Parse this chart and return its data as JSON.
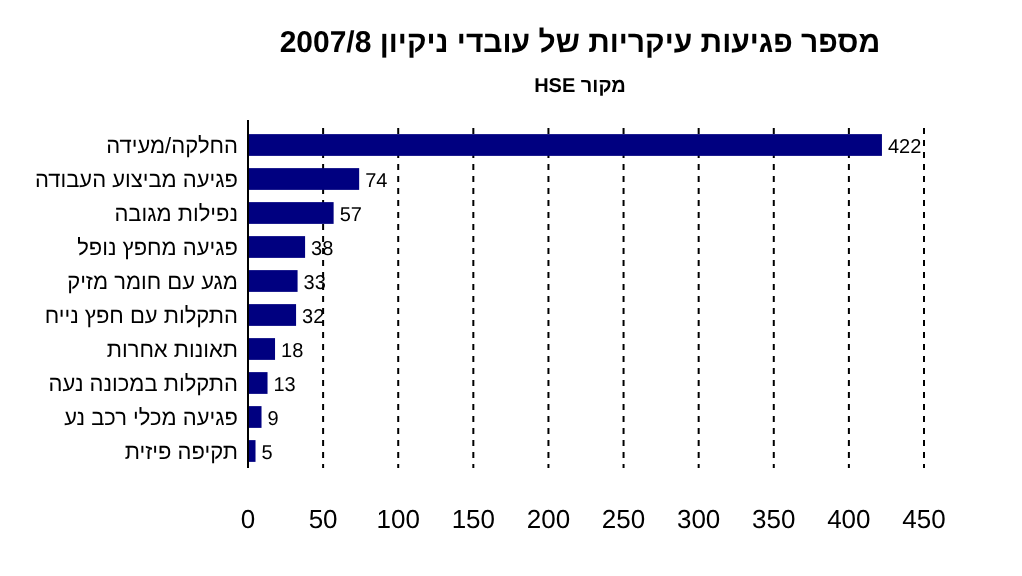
{
  "chart_data": {
    "type": "bar",
    "orientation": "horizontal",
    "title": "מספר פגיעות עיקריות של עובדי ניקיון 2007/8",
    "subtitle": "מקור HSE",
    "categories": [
      "החלקה/מעידה",
      "פגיעה מביצוע העבודה",
      "נפילות מגובה",
      "פגיעה מחפץ נופל",
      "מגע עם חומר מזיק",
      "התקלות עם חפץ נייח",
      "תאונות אחרות",
      "התקלות במכונה נעה",
      "פגיעה מכלי רכב נע",
      "תקיפה פיזית"
    ],
    "values": [
      422,
      74,
      57,
      38,
      33,
      32,
      18,
      13,
      9,
      5
    ],
    "color": "#000080",
    "xlim": [
      0,
      450
    ],
    "xticks": [
      0,
      50,
      100,
      150,
      200,
      250,
      300,
      350,
      400,
      450
    ],
    "grid": "x",
    "data_labels": true
  }
}
